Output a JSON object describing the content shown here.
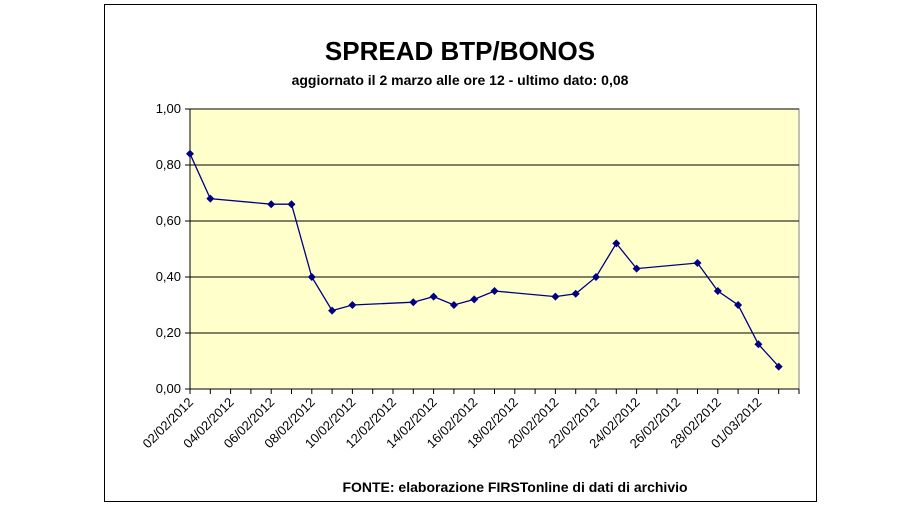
{
  "chart_data": {
    "type": "line",
    "title": "SPREAD BTP/BONOS",
    "subtitle": "aggiornato il 2 marzo alle ore 12 - ultimo dato: 0,08",
    "source": "FONTE: elaborazione FIRSTonline di dati di archivio",
    "xlabel": "",
    "ylabel": "",
    "ylim": [
      0,
      1
    ],
    "yticks": [
      "0,00",
      "0,20",
      "0,40",
      "0,60",
      "0,80",
      "1,00"
    ],
    "xlim": [
      "2012-02-02",
      "2012-03-03"
    ],
    "xticks": [
      "02/02/2012",
      "04/02/2012",
      "06/02/2012",
      "08/02/2012",
      "10/02/2012",
      "12/02/2012",
      "14/02/2012",
      "16/02/2012",
      "18/02/2012",
      "20/02/2012",
      "22/02/2012",
      "24/02/2012",
      "26/02/2012",
      "28/02/2012",
      "01/03/2012"
    ],
    "grid": "horizontal",
    "legend": "none",
    "colors": {
      "plot_background": "#FFFFCC",
      "line": "#000080",
      "marker": "#000080",
      "grid": "#000000"
    },
    "series": [
      {
        "x": [
          "2012-02-02",
          "2012-02-03",
          "2012-02-06",
          "2012-02-07",
          "2012-02-08",
          "2012-02-09",
          "2012-02-10",
          "2012-02-13",
          "2012-02-14",
          "2012-02-15",
          "2012-02-16",
          "2012-02-17",
          "2012-02-20",
          "2012-02-21",
          "2012-02-22",
          "2012-02-23",
          "2012-02-24",
          "2012-02-27",
          "2012-02-28",
          "2012-02-29",
          "2012-03-01",
          "2012-03-02"
        ],
        "values": [
          0.84,
          0.68,
          0.66,
          0.66,
          0.4,
          0.28,
          0.3,
          0.31,
          0.33,
          0.3,
          0.32,
          0.35,
          0.33,
          0.34,
          0.4,
          0.52,
          0.43,
          0.45,
          0.35,
          0.3,
          0.16,
          0.08
        ]
      }
    ]
  }
}
